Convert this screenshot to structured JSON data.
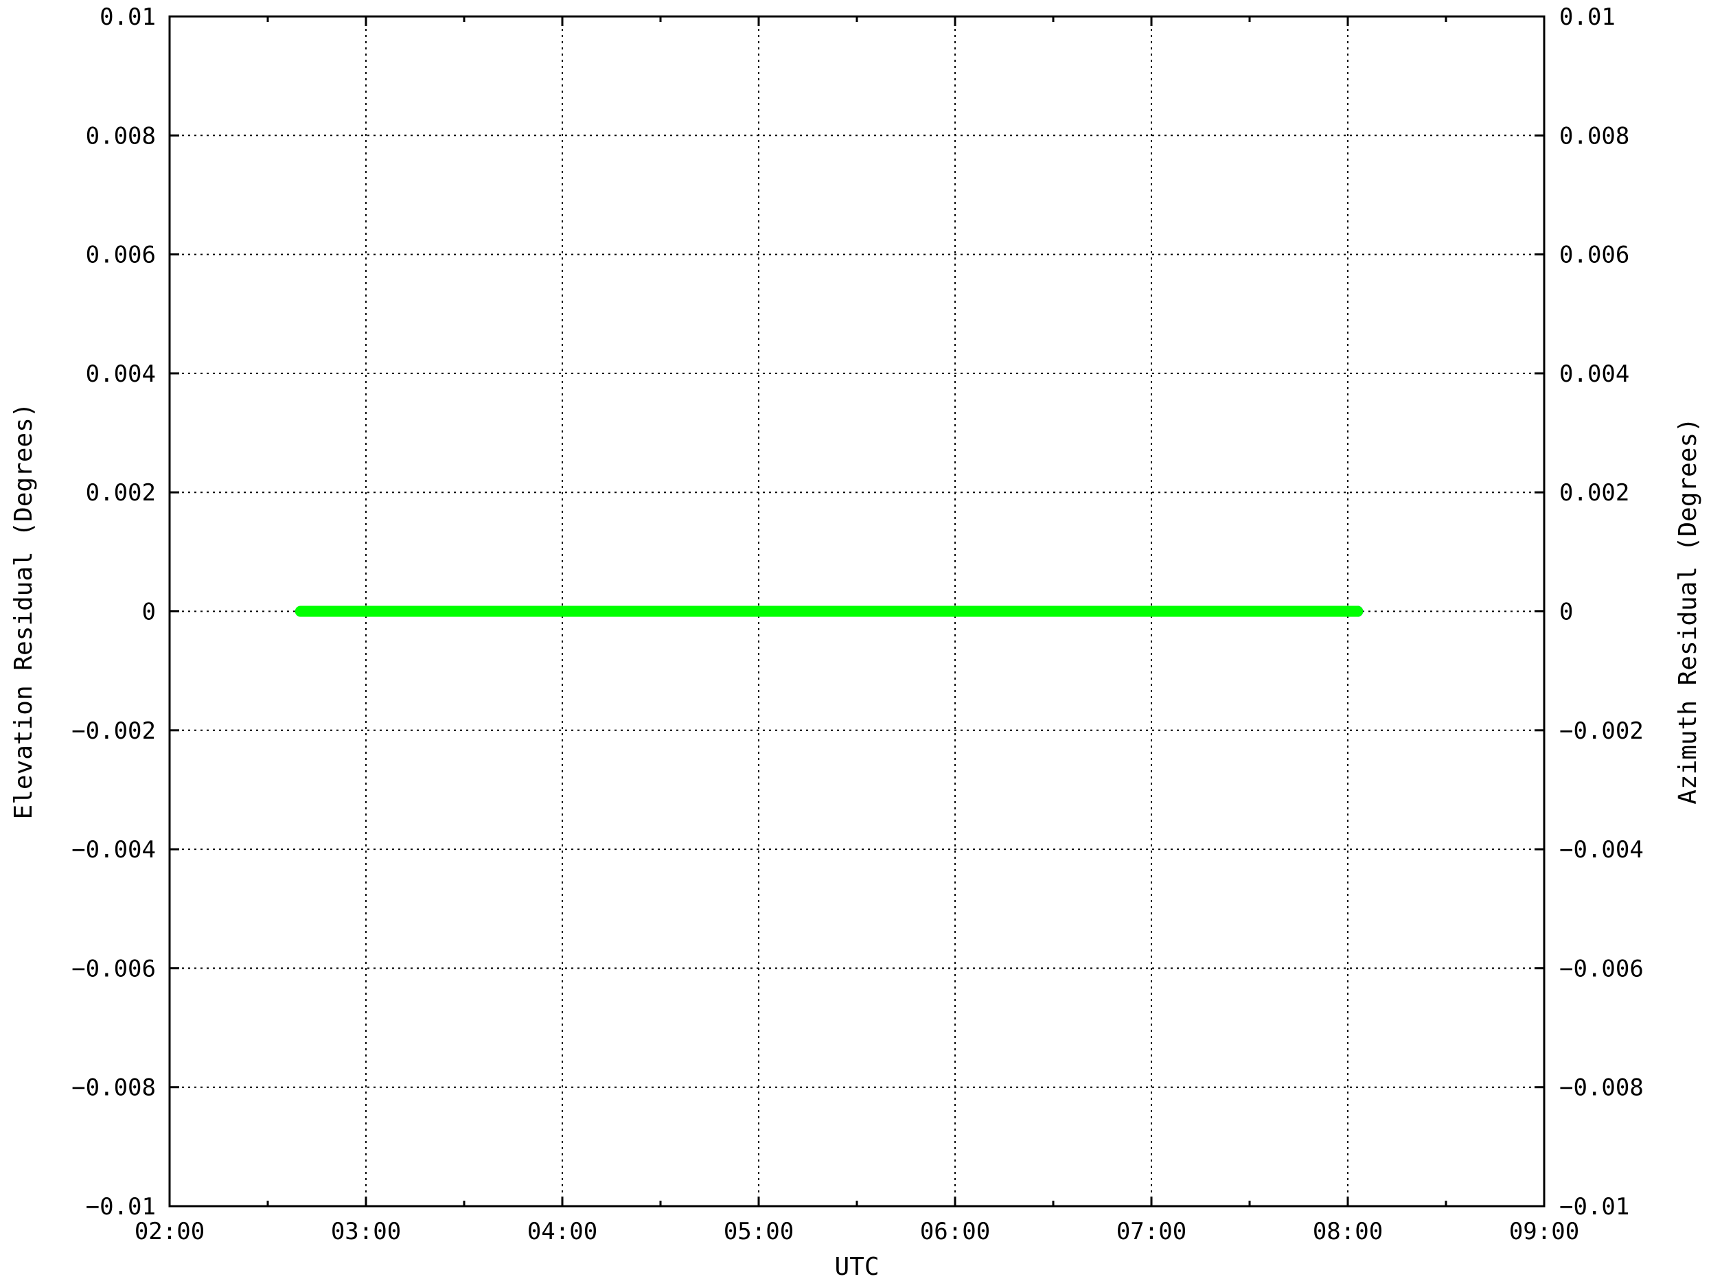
{
  "chart_data": {
    "type": "line",
    "xlabel": "UTC",
    "ylabel": "Elevation Residual (Degrees)",
    "y2label": "Azimuth Residual (Degrees)",
    "x_ticks": [
      "02:00",
      "03:00",
      "04:00",
      "05:00",
      "06:00",
      "07:00",
      "08:00",
      "09:00"
    ],
    "y_ticks": [
      "0.01",
      "0.008",
      "0.006",
      "0.004",
      "0.002",
      "0",
      "−0.002",
      "−0.004",
      "−0.006",
      "−0.008",
      "−0.01"
    ],
    "y2_ticks": [
      "0.01",
      "0.008",
      "0.006",
      "0.004",
      "0.002",
      "0",
      "−0.002",
      "−0.004",
      "−0.006",
      "−0.008",
      "−0.01"
    ],
    "xlim": [
      "02:00",
      "09:00"
    ],
    "ylim": [
      -0.01,
      0.01
    ],
    "y2lim": [
      -0.01,
      0.01
    ],
    "grid": true,
    "series": [
      {
        "color": "#0000ff",
        "axis": "y2",
        "x": [
          "06:10",
          "08:03"
        ],
        "values": [
          0,
          0
        ]
      },
      {
        "color": "#00ff00",
        "axis": "y",
        "x": [
          "02:40",
          "06:13",
          "06:15",
          "08:03"
        ],
        "values": [
          0,
          0,
          0,
          0
        ]
      }
    ]
  }
}
